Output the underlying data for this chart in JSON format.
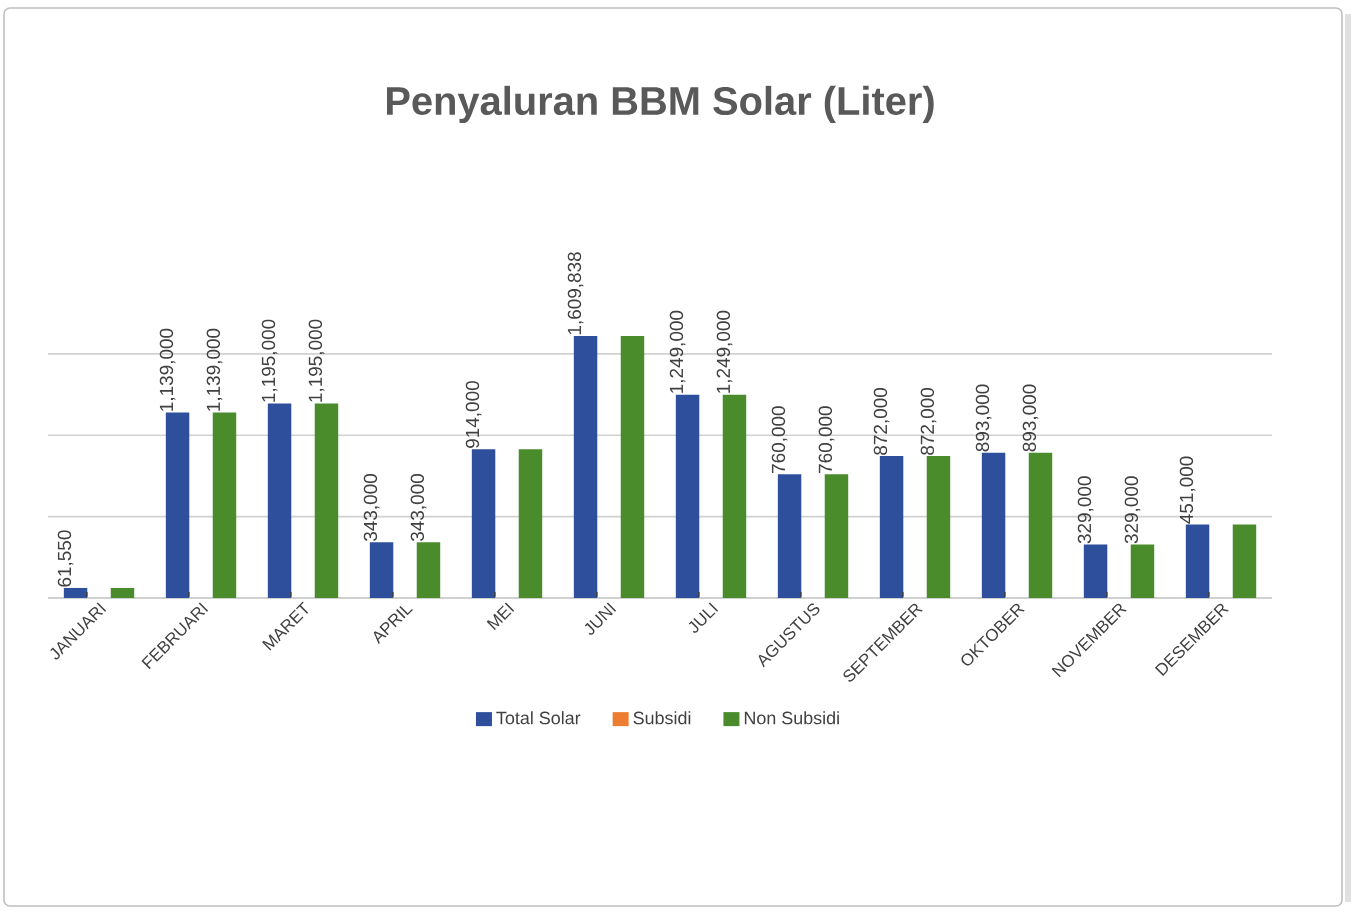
{
  "chart_data": {
    "type": "bar",
    "title": "Penyaluran BBM Solar (Liter)",
    "categories": [
      "JANUARI",
      "FEBRUARI",
      "MARET",
      "APRIL",
      "MEI",
      "JUNI",
      "JULI",
      "AGUSTUS",
      "SEPTEMBER",
      "OKTOBER",
      "NOVEMBER",
      "DESEMBER"
    ],
    "series": [
      {
        "name": "Total Solar",
        "color": "#2e4f9c",
        "values": [
          61550,
          1139000,
          1195000,
          343000,
          914000,
          1609838,
          1249000,
          760000,
          872000,
          893000,
          329000,
          451000
        ],
        "value_labels": [
          "61,550",
          "1,139,000",
          "1,195,000",
          "343,000",
          "914,000",
          "1,609,838",
          "1,249,000",
          "760,000",
          "872,000",
          "893,000",
          "329,000",
          "451,000"
        ]
      },
      {
        "name": "Subsidi",
        "color": "#ed7d31",
        "values": [
          0,
          0,
          0,
          0,
          0,
          0,
          0,
          0,
          0,
          0,
          0,
          0
        ],
        "value_labels": [
          "-",
          "-",
          "-",
          "-",
          "-",
          "-",
          "-",
          "-",
          "-",
          "-",
          "-",
          "-"
        ]
      },
      {
        "name": "Non Subsidi",
        "color": "#4a8b2c",
        "values": [
          61550,
          1139000,
          1195000,
          343000,
          914000,
          1609838,
          1249000,
          760000,
          872000,
          893000,
          329000,
          451000
        ],
        "value_labels": [
          null,
          "1,139,000",
          "1,195,000",
          "343,000",
          null,
          null,
          "1,249,000",
          "760,000",
          "872,000",
          "893,000",
          "329,000",
          null
        ]
      }
    ],
    "tick_labels": "x",
    "grid": "y",
    "legend": "bottom"
  }
}
